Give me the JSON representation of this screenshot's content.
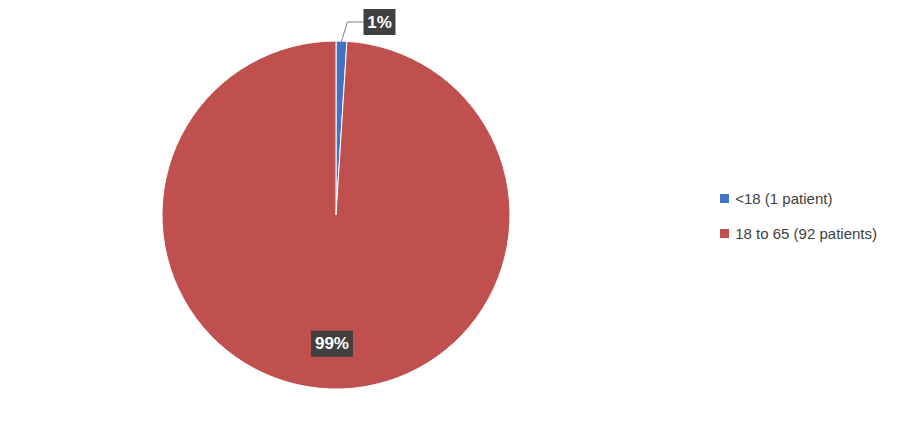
{
  "chart_data": {
    "type": "pie",
    "categories": [
      "<18 (1 patient)",
      "18 to 65 (92 patients)"
    ],
    "values": [
      1,
      99
    ],
    "value_labels": [
      "1%",
      "99%"
    ],
    "colors": [
      "#4472c4",
      "#c0504d"
    ],
    "data_labels": true,
    "legend": "right"
  }
}
